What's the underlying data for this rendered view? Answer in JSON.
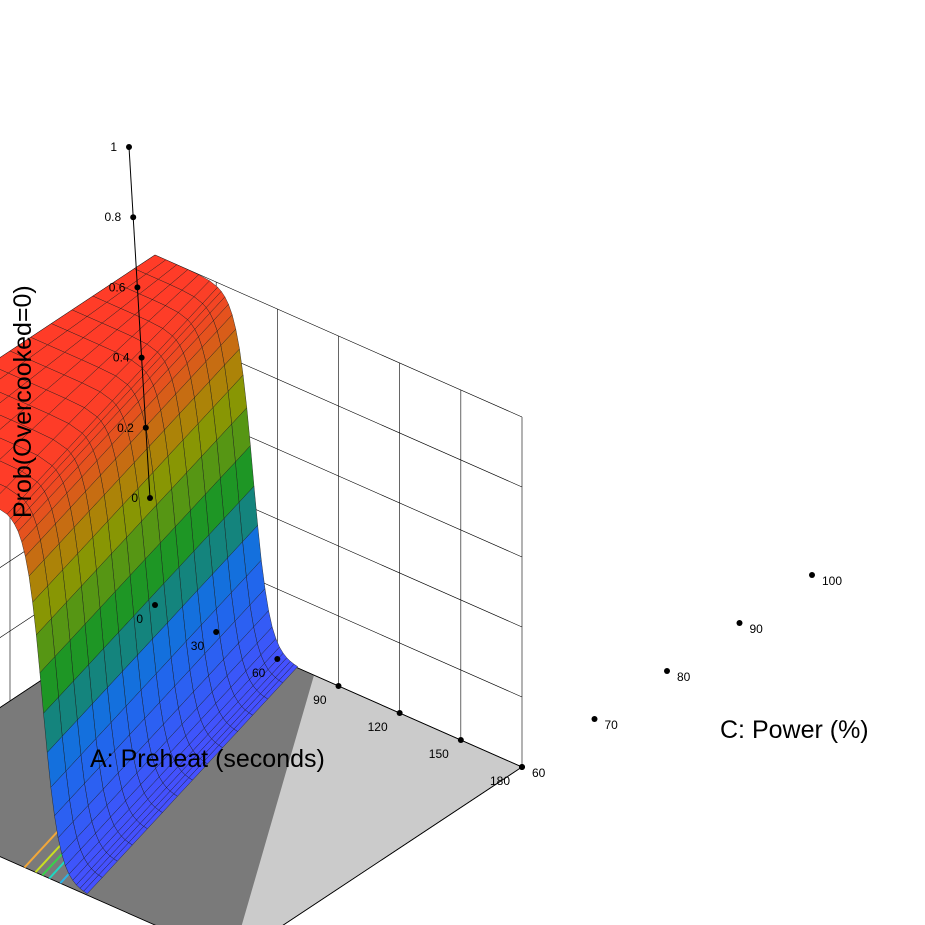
{
  "chart_data": {
    "type": "surface3d",
    "title": "",
    "x_axis": {
      "label": "A: Preheat (seconds)",
      "range": [
        0,
        180
      ],
      "ticks": [
        0,
        30,
        60,
        90,
        120,
        150,
        180
      ],
      "tick_labels": [
        "0",
        "30",
        "60",
        "90",
        "120",
        "150",
        "180"
      ]
    },
    "y_axis": {
      "label": "C: Power (%)",
      "range": [
        60,
        100
      ],
      "ticks": [
        60,
        70,
        80,
        90,
        100
      ],
      "tick_labels": [
        "60",
        "70",
        "80",
        "90",
        "100"
      ]
    },
    "z_axis": {
      "label": "Prob(Overcooked=0)",
      "range": [
        0,
        1
      ],
      "ticks": [
        0,
        0.2,
        0.4,
        0.6,
        0.8,
        1
      ],
      "tick_labels": [
        "0",
        "0.2",
        "0.4",
        "0.6",
        "0.8",
        "1"
      ]
    },
    "model": {
      "form": "logistic",
      "transition_preheat_at_power_60": 87,
      "transition_preheat_at_power_100": 48,
      "steepness_per_second": 0.25
    },
    "surface_domain": {
      "preheat": [
        0,
        180
      ],
      "power": [
        60,
        100
      ]
    },
    "contour_levels": [
      0.1,
      0.3,
      0.5,
      0.7,
      0.9
    ],
    "contour_colors": [
      "#2bb3e6",
      "#1ed8c0",
      "#38d24a",
      "#c8e020",
      "#f2a73a"
    ],
    "grid": true
  }
}
